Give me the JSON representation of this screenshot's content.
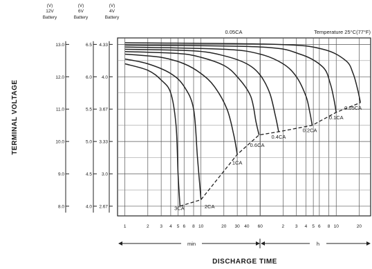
{
  "column_headers": [
    {
      "unit": "(V)",
      "voltage": "12V",
      "label": "Battery"
    },
    {
      "unit": "(V)",
      "voltage": "6V",
      "label": "Battery"
    },
    {
      "unit": "(V)",
      "voltage": "4V",
      "label": "Battery"
    }
  ],
  "y_scales": [
    {
      "ticks": [
        "13.0",
        "12.0",
        "11.0",
        "10.0",
        "9.0",
        "8.0"
      ]
    },
    {
      "ticks": [
        "6.5",
        "6.0",
        "5.5",
        "5.0",
        "4.5",
        "4.0"
      ]
    },
    {
      "ticks": [
        "4.33",
        "4.0",
        "3.67",
        "3.33",
        "3.0",
        "2.67"
      ]
    }
  ],
  "chart_data": {
    "type": "line",
    "title": "",
    "subtitle": "",
    "xlabel": "DISCHARGE TIME",
    "ylabel": "TERMINAL VOLTAGE",
    "x_scale": "log",
    "x_tick_labels": [
      "1",
      "2",
      "3",
      "4",
      "5",
      "6",
      "8",
      "10",
      "20",
      "30",
      "40",
      "60",
      "2",
      "3",
      "4",
      "5",
      "6",
      "8",
      "10",
      "20"
    ],
    "x_ticks_minutes": [
      1,
      2,
      3,
      4,
      5,
      6,
      8,
      10,
      20,
      30,
      40,
      60,
      120,
      180,
      240,
      300,
      360,
      480,
      600,
      1200
    ],
    "x_range_minutes": [
      0.8,
      1700
    ],
    "y_range_12v": [
      7.7,
      13.2
    ],
    "x_groups": [
      {
        "label": "min",
        "from": 1,
        "to": 60
      },
      {
        "label": "h",
        "from": 60,
        "to": 1200
      }
    ],
    "temperature_note": "Temperature 25°C(77°F)",
    "top_label": "0.05CA",
    "series": [
      {
        "name": "3CA",
        "points": [
          [
            1,
            12.4
          ],
          [
            2,
            12.2
          ],
          [
            3,
            11.9
          ],
          [
            4,
            11.5
          ],
          [
            4.7,
            10.5
          ],
          [
            5,
            9.0
          ],
          [
            5.3,
            8.0
          ]
        ]
      },
      {
        "name": "2CA",
        "points": [
          [
            1,
            12.55
          ],
          [
            2,
            12.4
          ],
          [
            4,
            12.1
          ],
          [
            6,
            11.7
          ],
          [
            8,
            11.0
          ],
          [
            9,
            9.5
          ],
          [
            10,
            8.2
          ]
        ]
      },
      {
        "name": "1CA",
        "points": [
          [
            1,
            12.7
          ],
          [
            3,
            12.6
          ],
          [
            6,
            12.4
          ],
          [
            10,
            12.1
          ],
          [
            15,
            11.7
          ],
          [
            22,
            11.0
          ],
          [
            27,
            10.2
          ],
          [
            30,
            9.6
          ]
        ]
      },
      {
        "name": "0.6CA",
        "points": [
          [
            1,
            12.78
          ],
          [
            5,
            12.72
          ],
          [
            10,
            12.6
          ],
          [
            20,
            12.35
          ],
          [
            30,
            12.0
          ],
          [
            45,
            11.4
          ],
          [
            53,
            10.6
          ],
          [
            58,
            10.2
          ]
        ]
      },
      {
        "name": "0.4CA",
        "points": [
          [
            1,
            12.85
          ],
          [
            8,
            12.8
          ],
          [
            20,
            12.65
          ],
          [
            40,
            12.4
          ],
          [
            60,
            12.05
          ],
          [
            80,
            11.5
          ],
          [
            95,
            10.8
          ],
          [
            105,
            10.3
          ]
        ]
      },
      {
        "name": "0.2CA",
        "points": [
          [
            1,
            12.92
          ],
          [
            20,
            12.85
          ],
          [
            60,
            12.7
          ],
          [
            120,
            12.4
          ],
          [
            180,
            12.0
          ],
          [
            240,
            11.4
          ],
          [
            270,
            10.9
          ],
          [
            290,
            10.5
          ]
        ]
      },
      {
        "name": "0.1CA",
        "points": [
          [
            1,
            12.98
          ],
          [
            60,
            12.92
          ],
          [
            200,
            12.7
          ],
          [
            400,
            12.3
          ],
          [
            500,
            11.8
          ],
          [
            560,
            11.3
          ],
          [
            600,
            10.9
          ]
        ]
      },
      {
        "name": "0.05CA",
        "points": [
          [
            1,
            13.05
          ],
          [
            100,
            13.0
          ],
          [
            400,
            12.85
          ],
          [
            800,
            12.5
          ],
          [
            1000,
            12.1
          ],
          [
            1150,
            11.6
          ],
          [
            1250,
            11.2
          ]
        ]
      }
    ],
    "cutoff_line": {
      "style": "dashed",
      "points": [
        [
          5.3,
          8.0
        ],
        [
          10,
          8.2
        ],
        [
          30,
          9.6
        ],
        [
          58,
          10.2
        ],
        [
          105,
          10.3
        ],
        [
          290,
          10.5
        ],
        [
          600,
          10.9
        ],
        [
          1250,
          11.2
        ]
      ]
    },
    "label_positions": [
      {
        "name": "3CA",
        "at": [
          5.2,
          7.95
        ]
      },
      {
        "name": "2CA",
        "at": [
          13,
          8.0
        ]
      },
      {
        "name": "1CA",
        "at": [
          30,
          9.35
        ]
      },
      {
        "name": "0.6CA",
        "at": [
          55,
          9.9
        ]
      },
      {
        "name": "0.4CA",
        "at": [
          105,
          10.15
        ]
      },
      {
        "name": "0.2CA",
        "at": [
          270,
          10.35
        ]
      },
      {
        "name": "0.1CA",
        "at": [
          600,
          10.75
        ]
      },
      {
        "name": "0.05CA",
        "at": [
          1300,
          11.05
        ]
      }
    ]
  }
}
